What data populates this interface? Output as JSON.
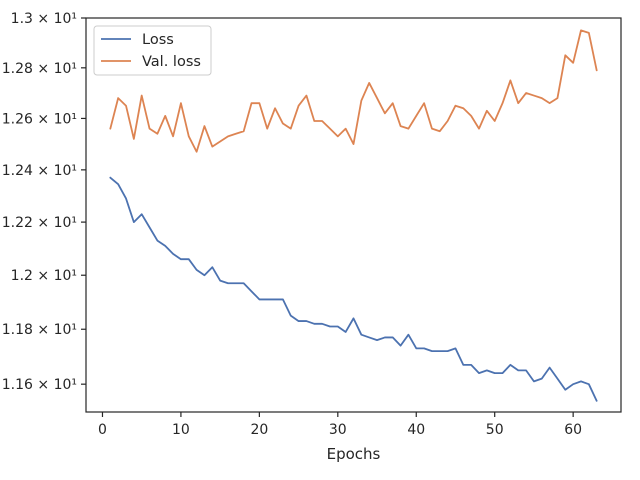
{
  "chart_data": {
    "type": "line",
    "xlabel": "Epochs",
    "ylabel": "",
    "y_scale": "log",
    "xlim": [
      -2.1,
      66.1
    ],
    "ylim": [
      11.5,
      13.0
    ],
    "x_ticks": [
      0,
      10,
      20,
      30,
      40,
      50,
      60
    ],
    "y_ticks": [
      {
        "value": 11.6,
        "label": "1.16 × 10¹"
      },
      {
        "value": 11.8,
        "label": "1.18 × 10¹"
      },
      {
        "value": 12.0,
        "label": "1.2 × 10¹"
      },
      {
        "value": 12.2,
        "label": "1.22 × 10¹"
      },
      {
        "value": 12.4,
        "label": "1.24 × 10¹"
      },
      {
        "value": 12.6,
        "label": "1.26 × 10¹"
      },
      {
        "value": 12.8,
        "label": "1.28 × 10¹"
      },
      {
        "value": 13.0,
        "label": "1.3 × 10¹"
      }
    ],
    "legend_position": "top-left",
    "grid": false,
    "x": [
      1,
      2,
      3,
      4,
      5,
      6,
      7,
      8,
      9,
      10,
      11,
      12,
      13,
      14,
      15,
      16,
      17,
      18,
      19,
      20,
      21,
      22,
      23,
      24,
      25,
      26,
      27,
      28,
      29,
      30,
      31,
      32,
      33,
      34,
      35,
      36,
      37,
      38,
      39,
      40,
      41,
      42,
      43,
      44,
      45,
      46,
      47,
      48,
      49,
      50,
      51,
      52,
      53,
      54,
      55,
      56,
      57,
      58,
      59,
      60,
      61,
      62,
      63
    ],
    "series": [
      {
        "name": "Loss",
        "color": "#4c72b0",
        "values": [
          12.37,
          12.345,
          12.29,
          12.2,
          12.23,
          12.18,
          12.13,
          12.11,
          12.08,
          12.06,
          12.06,
          12.02,
          12.0,
          12.03,
          11.98,
          11.97,
          11.97,
          11.97,
          11.94,
          11.91,
          11.91,
          11.91,
          11.91,
          11.85,
          11.83,
          11.83,
          11.82,
          11.82,
          11.81,
          11.81,
          11.79,
          11.84,
          11.78,
          11.77,
          11.76,
          11.77,
          11.77,
          11.74,
          11.78,
          11.73,
          11.73,
          11.72,
          11.72,
          11.72,
          11.73,
          11.67,
          11.67,
          11.64,
          11.65,
          11.64,
          11.64,
          11.67,
          11.65,
          11.65,
          11.61,
          11.62,
          11.66,
          11.62,
          11.58,
          11.6,
          11.61,
          11.6,
          11.54
        ]
      },
      {
        "name": "Val. loss",
        "color": "#dd8452",
        "values": [
          12.56,
          12.68,
          12.65,
          12.52,
          12.69,
          12.56,
          12.54,
          12.61,
          12.53,
          12.66,
          12.53,
          12.47,
          12.57,
          12.49,
          12.51,
          12.53,
          12.54,
          12.55,
          12.66,
          12.66,
          12.56,
          12.64,
          12.58,
          12.56,
          12.65,
          12.69,
          12.59,
          12.59,
          12.56,
          12.53,
          12.56,
          12.5,
          12.67,
          12.74,
          12.68,
          12.62,
          12.66,
          12.57,
          12.56,
          12.61,
          12.66,
          12.56,
          12.55,
          12.59,
          12.65,
          12.64,
          12.61,
          12.56,
          12.63,
          12.59,
          12.66,
          12.75,
          12.66,
          12.7,
          12.69,
          12.68,
          12.66,
          12.68,
          12.85,
          12.82,
          12.95,
          12.94,
          12.79
        ]
      }
    ]
  }
}
